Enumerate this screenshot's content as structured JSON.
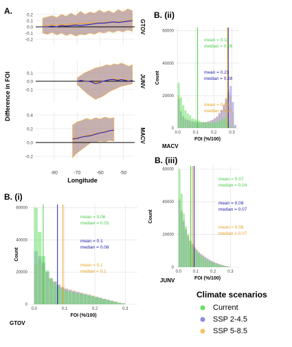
{
  "panel_labels": {
    "a": "A.",
    "bii": "B. (ii)",
    "biii": "B. (iii)",
    "bi": "B. (i)"
  },
  "colors": {
    "current": "#66e066",
    "ssp245": "#8c8ce6",
    "ssp585": "#f2c46a",
    "overlap": "#9c8a78",
    "band": "#b39494",
    "band_edge": "#f1b95a",
    "line_current": "#000000",
    "line_ssp245": "#2020c0",
    "line_ssp585": "#f0a020",
    "vline_current": "#44cc44",
    "vline_ssp245": "#1a1aa8",
    "vline_ssp585": "#e8a020",
    "grid": "#e6e6e6"
  },
  "panel_a": {
    "ylabel": "Difference in FOI",
    "xlabel": "Longitude",
    "xticks": [
      "-80",
      "-70",
      "-60",
      "-50"
    ],
    "xlim": [
      -88,
      -45
    ],
    "rows": [
      {
        "name": "GTOV",
        "ylim": [
          -0.3,
          0.3
        ],
        "yticks": [
          "-0.2",
          "-0.1",
          "0.0",
          "0.1",
          "0.2"
        ],
        "ytick_values": [
          -0.2,
          -0.1,
          0.0,
          0.1,
          0.2
        ],
        "xrange": [
          -85,
          -46
        ],
        "band_upper": [
          0.14,
          0.16,
          0.18,
          0.15,
          0.2,
          0.17,
          0.22,
          0.18,
          0.25,
          0.2,
          0.24,
          0.22,
          0.27,
          0.23,
          0.26,
          0.22,
          0.28,
          0.24,
          0.29,
          0.26
        ],
        "band_lower": [
          -0.1,
          -0.12,
          -0.09,
          -0.13,
          -0.1,
          -0.14,
          -0.11,
          -0.15,
          -0.12,
          -0.13,
          -0.1,
          -0.12,
          -0.08,
          -0.1,
          -0.07,
          -0.09,
          -0.06,
          -0.08,
          -0.05,
          -0.07
        ],
        "ssp245": [
          0.0,
          0.0,
          0.01,
          0.0,
          0.02,
          0.01,
          0.02,
          0.03,
          0.02,
          0.03,
          0.04,
          0.05,
          0.06,
          0.06,
          0.07,
          0.08,
          0.07,
          0.08,
          0.09,
          0.1
        ],
        "ssp585": [
          0.01,
          0.02,
          0.03,
          0.02,
          0.04,
          0.03,
          0.05,
          0.04,
          0.06,
          0.05,
          0.06,
          0.07,
          0.06,
          0.07,
          0.08,
          0.07,
          0.09,
          0.08,
          0.1,
          0.11
        ]
      },
      {
        "name": "JUNV",
        "ylim": [
          -0.25,
          0.25
        ],
        "yticks": [
          "-0.1",
          "0.0",
          "0.1"
        ],
        "ytick_values": [
          -0.1,
          0.0,
          0.1
        ],
        "xrange": [
          -70,
          -46
        ],
        "band_upper": [
          0.04,
          0.07,
          0.1,
          0.12,
          0.14,
          0.16,
          0.17,
          0.18,
          0.2,
          0.19,
          0.21,
          0.2,
          0.22,
          0.2,
          0.18,
          0.2
        ],
        "band_lower": [
          -0.04,
          -0.08,
          -0.12,
          -0.16,
          -0.19,
          -0.22,
          -0.2,
          -0.18,
          -0.15,
          -0.12,
          -0.1,
          -0.08,
          -0.06,
          -0.05,
          -0.04,
          -0.03
        ],
        "ssp245": [
          0.0,
          0.01,
          0.0,
          0.0,
          -0.01,
          -0.03,
          -0.02,
          0.0,
          0.01,
          0.02,
          0.02,
          0.01,
          0.02,
          0.01,
          0.0,
          0.01
        ],
        "ssp585": [
          0.0,
          0.01,
          0.01,
          0.0,
          -0.01,
          -0.02,
          -0.01,
          0.0,
          0.01,
          0.02,
          0.03,
          0.02,
          0.02,
          0.02,
          0.01,
          0.01
        ]
      },
      {
        "name": "MACV",
        "ylim": [
          -0.25,
          0.45
        ],
        "yticks": [
          "-0.2",
          "0.0",
          "0.2",
          "0.4"
        ],
        "ytick_values": [
          -0.2,
          0.0,
          0.2,
          0.4
        ],
        "xrange": [
          -72,
          -54
        ],
        "band_upper": [
          0.25,
          0.3,
          0.32,
          0.35,
          0.33,
          0.36,
          0.34,
          0.37,
          0.35,
          0.36
        ],
        "band_lower": [
          -0.22,
          -0.15,
          -0.1,
          -0.05,
          0.0,
          0.0,
          0.02,
          0.01,
          0.03,
          0.02
        ],
        "ssp245": [
          0.05,
          0.06,
          0.08,
          0.09,
          0.1,
          0.12,
          0.14,
          0.15,
          0.17,
          0.18
        ],
        "ssp585": [
          0.06,
          0.07,
          0.08,
          0.1,
          0.11,
          0.13,
          0.14,
          0.16,
          0.17,
          0.18
        ]
      }
    ]
  },
  "hist_bii": {
    "name": "MACV",
    "xlabel": "FOI (%/100)",
    "xticks": [
      "0.0",
      "0.1",
      "0.2",
      "0.3"
    ],
    "xtick_values": [
      0.0,
      0.1,
      0.2,
      0.3
    ],
    "yticks": [
      "0",
      "20000",
      "40000",
      "60000"
    ],
    "ytick_values": [
      0,
      20000,
      40000,
      60000
    ],
    "xlim": [
      -0.01,
      0.34
    ],
    "ylim": [
      0,
      62000
    ],
    "bin_width": 0.0125,
    "current": [
      28000,
      19000,
      14000,
      11000,
      9000,
      8000,
      6000,
      5500,
      5000,
      4500,
      4000,
      3800,
      3500,
      3400,
      3200,
      3300,
      3500,
      4000,
      4500,
      5000,
      6000,
      7000,
      4000,
      1000,
      400,
      0
    ],
    "ssp245": [
      18000,
      10000,
      7000,
      5500,
      5000,
      4500,
      4000,
      3800,
      3500,
      3400,
      3300,
      3400,
      3600,
      4000,
      4500,
      5000,
      6000,
      7000,
      9000,
      11000,
      14000,
      18000,
      22000,
      26000,
      16000,
      2000
    ],
    "ssp585": [
      20000,
      11000,
      7500,
      6000,
      5200,
      4800,
      4200,
      4000,
      3700,
      3500,
      3400,
      3500,
      3700,
      4100,
      4600,
      5100,
      6200,
      7200,
      9500,
      11500,
      15000,
      19000,
      24000,
      20000,
      10000,
      1000
    ],
    "vlines": {
      "current": 0.11,
      "ssp245": 0.28,
      "ssp585": 0.276
    },
    "stats": [
      {
        "mean": "mean = 0.11",
        "median": "median = 0.09",
        "color": "#44cc44"
      },
      {
        "mean": "mean = 0.23",
        "median": "median = 0.28",
        "color": "#1a1aa8"
      },
      {
        "mean": "mean = 0.22",
        "median": "median = 0.27",
        "color": "#e8a020"
      }
    ]
  },
  "hist_biii": {
    "name": "JUNV",
    "xlabel": "FOI (%/100)",
    "xticks": [
      "0.0",
      "0.1",
      "0.2",
      "0.3"
    ],
    "xtick_values": [
      0.0,
      0.1,
      0.2,
      0.3
    ],
    "yticks": [
      "0",
      "20000",
      "40000",
      "60000"
    ],
    "ytick_values": [
      0,
      20000,
      40000,
      60000
    ],
    "xlim": [
      -0.015,
      0.35
    ],
    "ylim": [
      0,
      62000
    ],
    "bin_width": 0.0125,
    "current": [
      60000,
      45000,
      33000,
      25000,
      20000,
      16000,
      13000,
      11000,
      9500,
      8000,
      7000,
      6000,
      5000,
      4300,
      3500,
      3000,
      2500,
      2000,
      1600,
      1200,
      900,
      600,
      400,
      200
    ],
    "ssp245": [
      41000,
      34000,
      28000,
      23000,
      19000,
      16000,
      14000,
      12000,
      10500,
      9000,
      8000,
      7000,
      6000,
      5200,
      4400,
      3700,
      3100,
      2500,
      2000,
      1600,
      1200,
      800,
      500,
      300
    ],
    "ssp585": [
      42000,
      35000,
      29000,
      23500,
      19500,
      16500,
      14500,
      12500,
      11000,
      9500,
      8300,
      7200,
      6200,
      5300,
      4500,
      3800,
      3200,
      2600,
      2100,
      1700,
      1300,
      900,
      600,
      300
    ],
    "vlines": {
      "current": 0.07,
      "ssp245": 0.09,
      "ssp585": 0.08
    },
    "stats": [
      {
        "mean": "mean = 0.07",
        "median": "median = 0.04",
        "color": "#44cc44"
      },
      {
        "mean": "mean = 0.09",
        "median": "median = 0.07",
        "color": "#1a1aa8"
      },
      {
        "mean": "mean = 0.08",
        "median": "median = 0.07",
        "color": "#e8a020"
      }
    ]
  },
  "hist_bi": {
    "name": "GTOV",
    "xlabel": "FOI (%/100)",
    "xticks": [
      "0.0",
      "0.1",
      "0.2",
      "0.3"
    ],
    "xtick_values": [
      0.0,
      0.1,
      0.2,
      0.3
    ],
    "yticks": [
      "0",
      "20000",
      "40000",
      "60000"
    ],
    "ytick_values": [
      0,
      20000,
      40000,
      60000
    ],
    "xlim": [
      -0.015,
      0.34
    ],
    "ylim": [
      0,
      62000
    ],
    "bin_width": 0.0125,
    "current": [
      60000,
      45000,
      30000,
      21000,
      16000,
      13000,
      11000,
      9500,
      8500,
      7800,
      7200,
      6800,
      6400,
      6000,
      5500,
      5000,
      4400,
      3800,
      3200,
      2600,
      2000,
      1400,
      900,
      500
    ],
    "ssp245": [
      33000,
      30000,
      26000,
      20000,
      16000,
      14000,
      12000,
      10500,
      9500,
      8800,
      8200,
      7600,
      7000,
      6400,
      5800,
      5200,
      4600,
      4000,
      3400,
      2800,
      2200,
      1600,
      1000,
      600
    ],
    "ssp585": [
      25000,
      28000,
      25000,
      20000,
      16500,
      14500,
      12500,
      11000,
      10000,
      9200,
      8500,
      7900,
      7300,
      6700,
      6100,
      5500,
      4800,
      4200,
      3500,
      2900,
      2300,
      1700,
      1100,
      700
    ],
    "vlines": {
      "current": 0.03,
      "ssp245": 0.077,
      "ssp585": 0.095
    },
    "stats": [
      {
        "mean": "mean = 0.06",
        "median": "median = 0.03",
        "color": "#44cc44"
      },
      {
        "mean": "mean = 0.1",
        "median": "median = 0.08",
        "color": "#1a1aa8"
      },
      {
        "mean": "mean = 0.1",
        "median": "median = 0.1",
        "color": "#e8a020"
      }
    ]
  },
  "hist_common": {
    "ylabel": "Count"
  },
  "legend": {
    "title": "Climate scenarios",
    "items": [
      {
        "label": "Current",
        "color": "#66e066"
      },
      {
        "label": "SSP 2-4.5",
        "color": "#8c8ce6"
      },
      {
        "label": "SSP 5-8.5",
        "color": "#f2c46a"
      }
    ]
  }
}
